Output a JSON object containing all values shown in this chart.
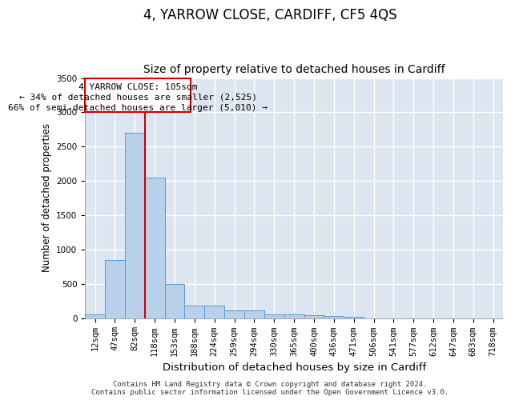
{
  "title": "4, YARROW CLOSE, CARDIFF, CF5 4QS",
  "subtitle": "Size of property relative to detached houses in Cardiff",
  "xlabel": "Distribution of detached houses by size in Cardiff",
  "ylabel": "Number of detached properties",
  "categories": [
    "12sqm",
    "47sqm",
    "82sqm",
    "118sqm",
    "153sqm",
    "188sqm",
    "224sqm",
    "259sqm",
    "294sqm",
    "330sqm",
    "365sqm",
    "400sqm",
    "436sqm",
    "471sqm",
    "506sqm",
    "541sqm",
    "577sqm",
    "612sqm",
    "647sqm",
    "683sqm",
    "718sqm"
  ],
  "values": [
    50,
    850,
    2700,
    2050,
    500,
    185,
    185,
    110,
    115,
    55,
    55,
    45,
    30,
    20,
    0,
    0,
    0,
    0,
    0,
    0,
    0
  ],
  "bar_color": "#b8d0ea",
  "bar_edge_color": "#5b9bd5",
  "background_color": "#dde5f0",
  "grid_color": "#ffffff",
  "annotation_box_color": "#cc0000",
  "property_line_color": "#cc0000",
  "property_line_x": 2.5,
  "annotation_title": "4 YARROW CLOSE: 105sqm",
  "annotation_line1": "← 34% of detached houses are smaller (2,525)",
  "annotation_line2": "66% of semi-detached houses are larger (5,010) →",
  "footer1": "Contains HM Land Registry data © Crown copyright and database right 2024.",
  "footer2": "Contains public sector information licensed under the Open Government Licence v3.0.",
  "ylim": [
    0,
    3500
  ],
  "yticks": [
    0,
    500,
    1000,
    1500,
    2000,
    2500,
    3000,
    3500
  ],
  "title_fontsize": 12,
  "subtitle_fontsize": 10,
  "xlabel_fontsize": 9.5,
  "ylabel_fontsize": 8.5,
  "tick_fontsize": 7.5,
  "annotation_fontsize": 8,
  "footer_fontsize": 6.5
}
